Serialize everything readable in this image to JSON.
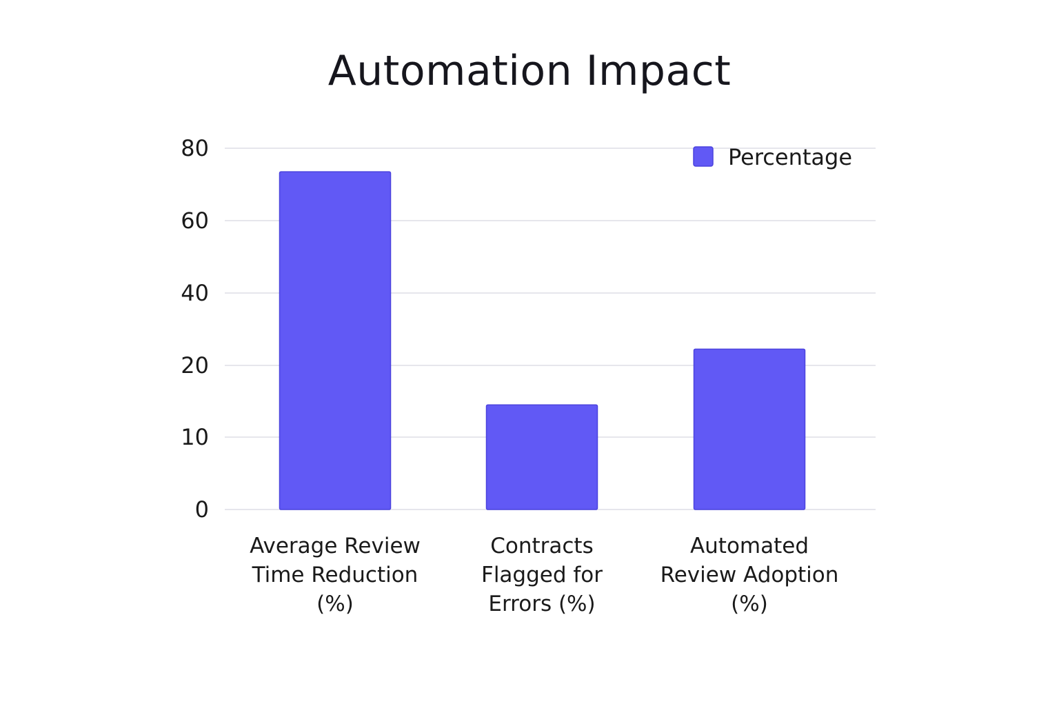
{
  "chart_data": {
    "type": "bar",
    "title": "Automation Impact",
    "xlabel": "",
    "ylabel": "",
    "categories": [
      [
        "Average Review",
        "Time Reduction",
        "(%)"
      ],
      [
        "Contracts",
        "Flagged for",
        "Errors (%)"
      ],
      [
        "Automated",
        "Review Adoption",
        "(%)"
      ]
    ],
    "series": [
      {
        "name": "Percentage",
        "values": [
          73.5,
          14.5,
          24.5
        ],
        "color": "#6159f5"
      }
    ],
    "y_ticks": [
      {
        "value": 0,
        "label": "0"
      },
      {
        "value": 10,
        "label": "10"
      },
      {
        "value": 20,
        "label": "20"
      },
      {
        "value": 40,
        "label": "40"
      },
      {
        "value": 60,
        "label": "60"
      },
      {
        "value": 80,
        "label": "80"
      }
    ],
    "grid": true,
    "legend_position": "top-right",
    "colors": {
      "bar": "#6159f5",
      "bar_border": "#4b43de",
      "grid": "#e6e6ec",
      "text": "#1a1a1a"
    }
  }
}
